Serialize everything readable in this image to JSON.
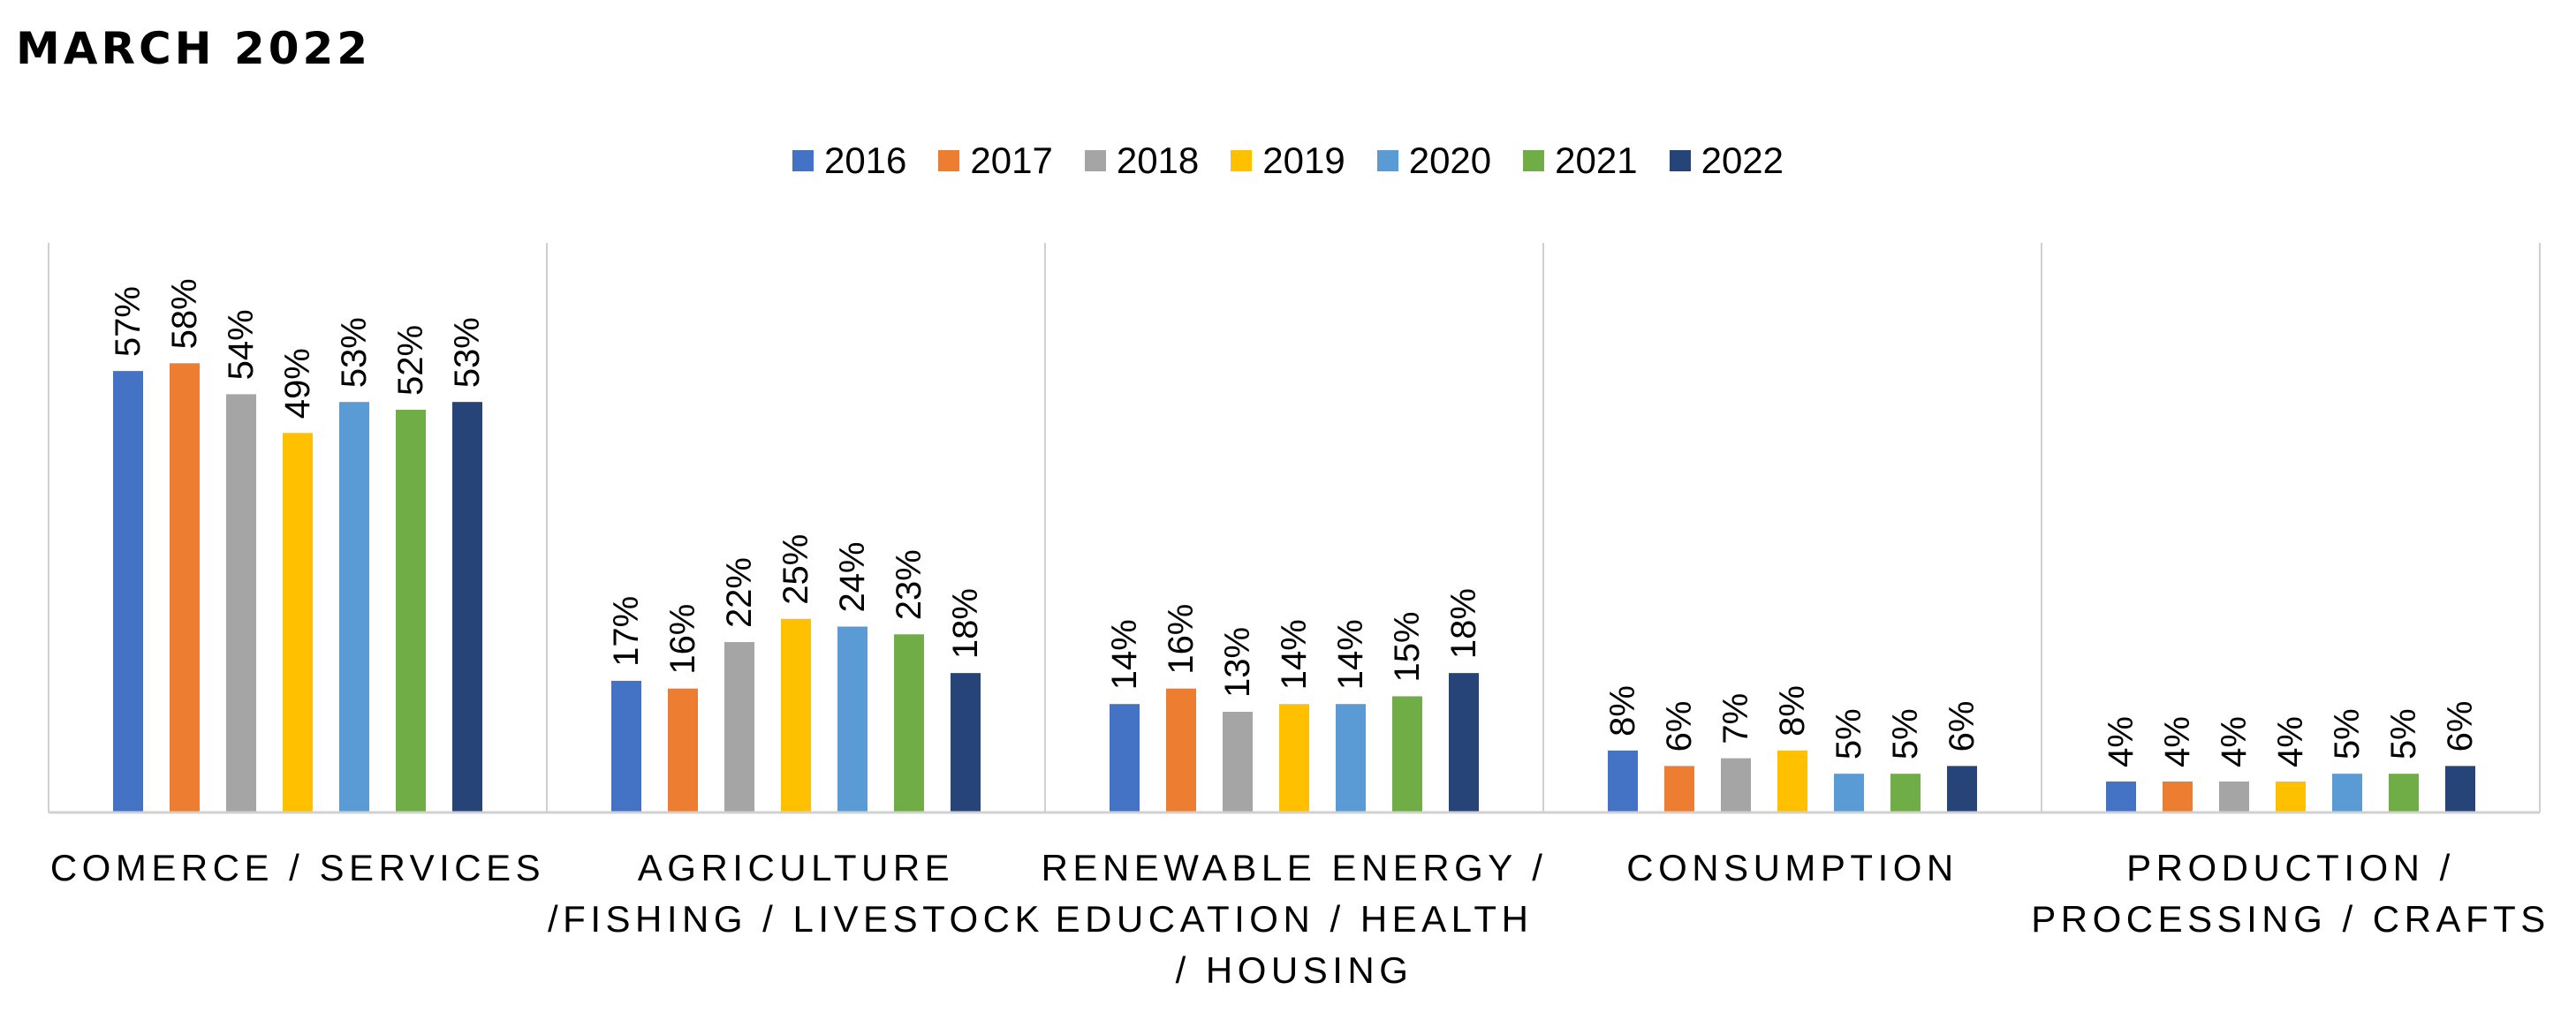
{
  "page": {
    "title": "MARCH 2022"
  },
  "chart_data": {
    "type": "bar",
    "title": "MARCH 2022",
    "xlabel": "",
    "ylabel": "",
    "ylim": [
      0,
      60
    ],
    "grid": false,
    "legend_position": "top-center",
    "value_format": "percent",
    "categories": [
      [
        "COMERCE / SERVICES"
      ],
      [
        "AGRICULTURE",
        "/FISHING / LIVESTOCK"
      ],
      [
        "RENEWABLE ENERGY /",
        "EDUCATION / HEALTH",
        "/ HOUSING"
      ],
      [
        "CONSUMPTION"
      ],
      [
        "PRODUCTION /",
        "PROCESSING / CRAFTS"
      ]
    ],
    "series": [
      {
        "name": "2016",
        "color": "#4472C4",
        "values": [
          57,
          17,
          14,
          8,
          4
        ]
      },
      {
        "name": "2017",
        "color": "#ED7D31",
        "values": [
          58,
          16,
          16,
          6,
          4
        ]
      },
      {
        "name": "2018",
        "color": "#A5A5A5",
        "values": [
          54,
          22,
          13,
          7,
          4
        ]
      },
      {
        "name": "2019",
        "color": "#FFC000",
        "values": [
          49,
          25,
          14,
          8,
          4
        ]
      },
      {
        "name": "2020",
        "color": "#5B9BD5",
        "values": [
          53,
          24,
          14,
          5,
          5
        ]
      },
      {
        "name": "2021",
        "color": "#70AD47",
        "values": [
          52,
          23,
          15,
          5,
          5
        ]
      },
      {
        "name": "2022",
        "color": "#264478",
        "values": [
          53,
          18,
          18,
          6,
          6
        ]
      }
    ]
  }
}
